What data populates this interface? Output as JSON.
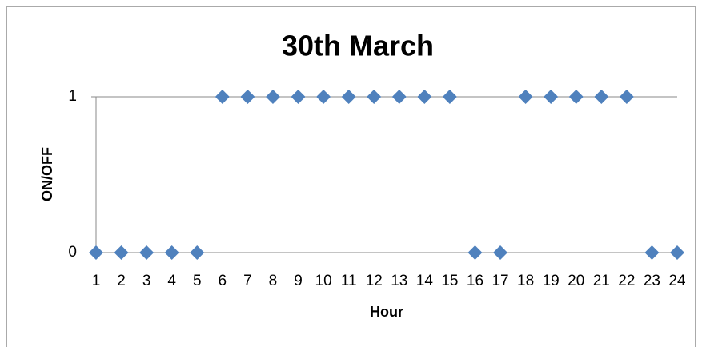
{
  "chart_data": {
    "type": "scatter",
    "title": "30th March",
    "x_label": "Hour",
    "y_label": "ON/OFF",
    "x": [
      1,
      2,
      3,
      4,
      5,
      6,
      7,
      8,
      9,
      10,
      11,
      12,
      13,
      14,
      15,
      16,
      17,
      18,
      19,
      20,
      21,
      22,
      23,
      24
    ],
    "series": [
      {
        "name": "ON/OFF",
        "color": "#4f81bd",
        "values": [
          0,
          0,
          0,
          0,
          0,
          1,
          1,
          1,
          1,
          1,
          1,
          1,
          1,
          1,
          1,
          0,
          0,
          1,
          1,
          1,
          1,
          1,
          0,
          0
        ]
      }
    ],
    "xlim": [
      1,
      24
    ],
    "xticks": [
      1,
      2,
      3,
      4,
      5,
      6,
      7,
      8,
      9,
      10,
      11,
      12,
      13,
      14,
      15,
      16,
      17,
      18,
      19,
      20,
      21,
      22,
      23,
      24
    ],
    "ylim": [
      0,
      1
    ],
    "yticks": [
      0,
      1
    ],
    "grid": true,
    "legend": false
  }
}
